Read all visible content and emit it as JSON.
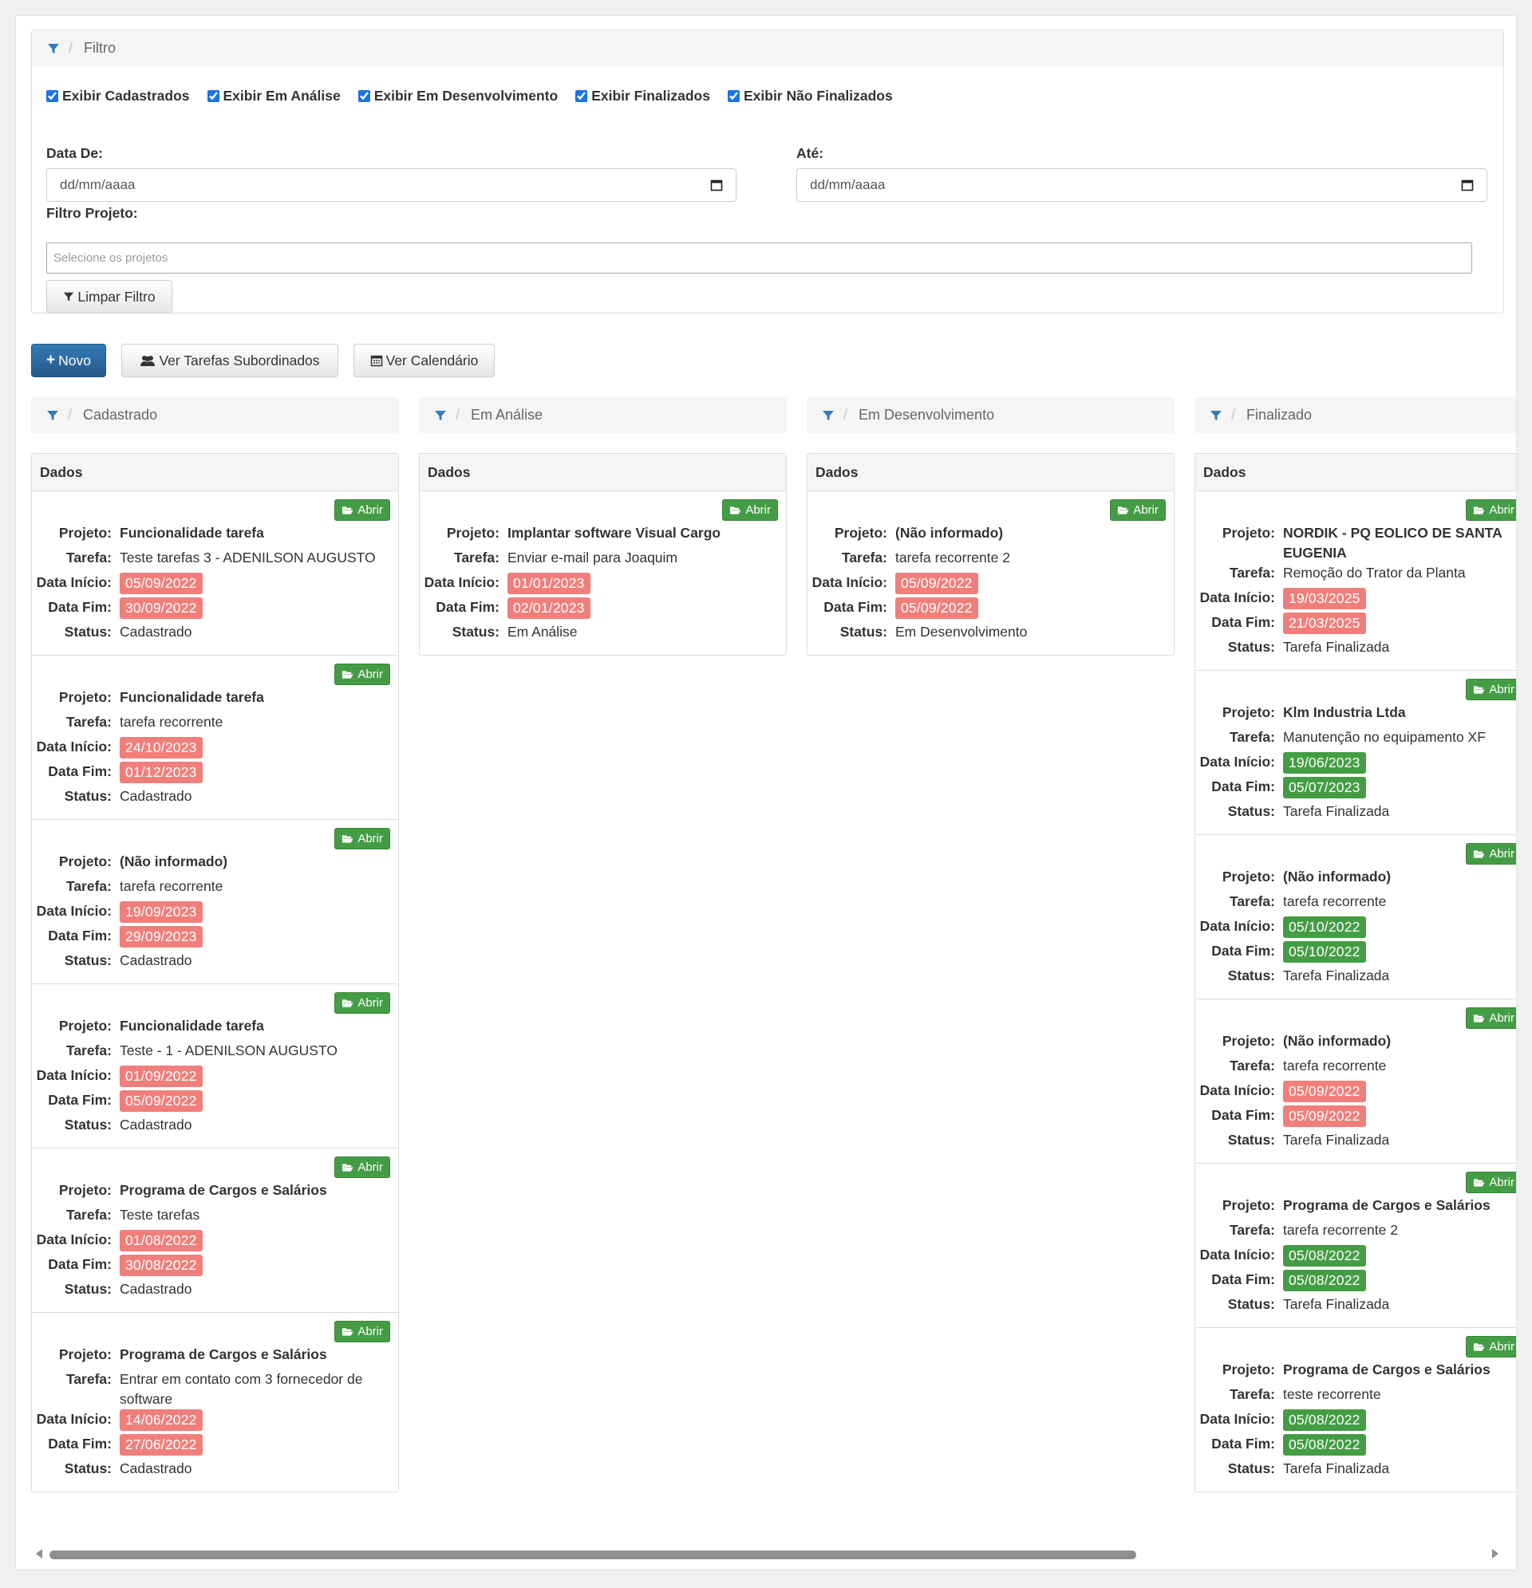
{
  "filter": {
    "title": "Filtro",
    "checkboxes": [
      {
        "label": "Exibir Cadastrados",
        "checked": true
      },
      {
        "label": "Exibir Em Análise",
        "checked": true
      },
      {
        "label": "Exibir Em Desenvolvimento",
        "checked": true
      },
      {
        "label": "Exibir Finalizados",
        "checked": true
      },
      {
        "label": "Exibir Não Finalizados",
        "checked": true
      }
    ],
    "date_from_label": "Data De:",
    "date_to_label": "Até:",
    "date_placeholder": "dd/mm/aaaa",
    "project_label": "Filtro Projeto:",
    "project_placeholder": "Selecione os projetos",
    "clear_label": "Limpar Filtro"
  },
  "toolbar": {
    "new_label": "Novo",
    "subordinates_label": "Ver Tarefas Subordinados",
    "calendar_label": "Ver Calendário"
  },
  "labels": {
    "panel_title": "Dados",
    "open": "Abrir",
    "projeto": "Projeto:",
    "tarefa": "Tarefa:",
    "inicio": "Data Início:",
    "fim": "Data Fim:",
    "status": "Status:"
  },
  "colors": {
    "late": "#f07f7b",
    "ok": "#449d44",
    "primary": "#337ab7"
  },
  "columns": [
    {
      "title": "Cadastrado",
      "cards": [
        {
          "projeto": "Funcionalidade tarefa",
          "tarefa": "Teste tarefas 3 - ADENILSON AUGUSTO",
          "inicio": "05/09/2022",
          "inicio_color": "red",
          "fim": "30/09/2022",
          "fim_color": "red",
          "status": "Cadastrado"
        },
        {
          "projeto": "Funcionalidade tarefa",
          "tarefa": "tarefa recorrente",
          "inicio": "24/10/2023",
          "inicio_color": "red",
          "fim": "01/12/2023",
          "fim_color": "red",
          "status": "Cadastrado"
        },
        {
          "projeto": "(Não informado)",
          "tarefa": "tarefa recorrente",
          "inicio": "19/09/2023",
          "inicio_color": "red",
          "fim": "29/09/2023",
          "fim_color": "red",
          "status": "Cadastrado"
        },
        {
          "projeto": "Funcionalidade tarefa",
          "tarefa": "Teste - 1 - ADENILSON AUGUSTO",
          "inicio": "01/09/2022",
          "inicio_color": "red",
          "fim": "05/09/2022",
          "fim_color": "red",
          "status": "Cadastrado"
        },
        {
          "projeto": "Programa de Cargos e Salários",
          "tarefa": "Teste tarefas",
          "inicio": "01/08/2022",
          "inicio_color": "red",
          "fim": "30/08/2022",
          "fim_color": "red",
          "status": "Cadastrado"
        },
        {
          "projeto": "Programa de Cargos e Salários",
          "tarefa": "Entrar em contato com 3 fornecedor de software",
          "inicio": "14/06/2022",
          "inicio_color": "red",
          "fim": "27/06/2022",
          "fim_color": "red",
          "status": "Cadastrado"
        }
      ]
    },
    {
      "title": "Em Análise",
      "cards": [
        {
          "projeto": "Implantar software Visual Cargo",
          "tarefa": "Enviar e-mail para Joaquim",
          "inicio": "01/01/2023",
          "inicio_color": "red",
          "fim": "02/01/2023",
          "fim_color": "red",
          "status": "Em Análise"
        }
      ]
    },
    {
      "title": "Em Desenvolvimento",
      "cards": [
        {
          "projeto": "(Não informado)",
          "tarefa": "tarefa recorrente 2",
          "inicio": "05/09/2022",
          "inicio_color": "red",
          "fim": "05/09/2022",
          "fim_color": "red",
          "status": "Em Desenvolvimento"
        }
      ]
    },
    {
      "title": "Finalizado",
      "cards": [
        {
          "projeto": "NORDIK - PQ EOLICO DE SANTA EUGENIA",
          "tarefa": "Remoção do Trator da Planta",
          "inicio": "19/03/2025",
          "inicio_color": "red",
          "fim": "21/03/2025",
          "fim_color": "red",
          "status": "Tarefa Finalizada"
        },
        {
          "projeto": "Klm Industria Ltda",
          "tarefa": "Manutenção no equipamento XF",
          "inicio": "19/06/2023",
          "inicio_color": "green",
          "fim": "05/07/2023",
          "fim_color": "green",
          "status": "Tarefa Finalizada"
        },
        {
          "projeto": "(Não informado)",
          "tarefa": "tarefa recorrente",
          "inicio": "05/10/2022",
          "inicio_color": "green",
          "fim": "05/10/2022",
          "fim_color": "green",
          "status": "Tarefa Finalizada"
        },
        {
          "projeto": "(Não informado)",
          "tarefa": "tarefa recorrente",
          "inicio": "05/09/2022",
          "inicio_color": "red",
          "fim": "05/09/2022",
          "fim_color": "red",
          "status": "Tarefa Finalizada"
        },
        {
          "projeto": "Programa de Cargos e Salários",
          "tarefa": "tarefa recorrente 2",
          "inicio": "05/08/2022",
          "inicio_color": "green",
          "fim": "05/08/2022",
          "fim_color": "green",
          "status": "Tarefa Finalizada"
        },
        {
          "projeto": "Programa de Cargos e Salários",
          "tarefa": "teste recorrente",
          "inicio": "05/08/2022",
          "inicio_color": "green",
          "fim": "05/08/2022",
          "fim_color": "green",
          "status": "Tarefa Finalizada"
        }
      ]
    }
  ]
}
